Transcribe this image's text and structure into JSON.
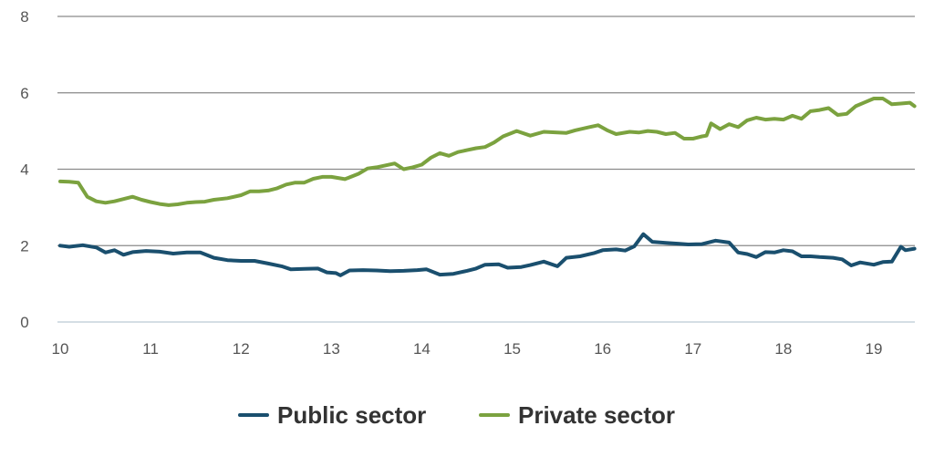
{
  "chart_data": {
    "type": "line",
    "title": "",
    "xlabel": "",
    "ylabel": "",
    "xlim": [
      10,
      19.45
    ],
    "ylim": [
      0,
      8
    ],
    "x_ticks": [
      10,
      11,
      12,
      13,
      14,
      15,
      16,
      17,
      18,
      19
    ],
    "x_tick_labels": [
      "10",
      "11",
      "12",
      "13",
      "14",
      "15",
      "16",
      "17",
      "18",
      "19"
    ],
    "y_ticks": [
      0,
      2,
      4,
      6,
      8
    ],
    "y_tick_labels": [
      "0",
      "2",
      "4",
      "6",
      "8"
    ],
    "grid": true,
    "legend_position": "bottom-center",
    "series": [
      {
        "name": "Public sector",
        "color": "#1a4f6e",
        "points": [
          [
            10.0,
            2.0
          ],
          [
            10.1,
            1.97
          ],
          [
            10.25,
            2.01
          ],
          [
            10.4,
            1.95
          ],
          [
            10.5,
            1.82
          ],
          [
            10.6,
            1.88
          ],
          [
            10.7,
            1.76
          ],
          [
            10.8,
            1.83
          ],
          [
            10.95,
            1.86
          ],
          [
            11.1,
            1.84
          ],
          [
            11.25,
            1.79
          ],
          [
            11.4,
            1.82
          ],
          [
            11.55,
            1.82
          ],
          [
            11.7,
            1.68
          ],
          [
            11.85,
            1.62
          ],
          [
            12.0,
            1.6
          ],
          [
            12.15,
            1.6
          ],
          [
            12.3,
            1.53
          ],
          [
            12.45,
            1.46
          ],
          [
            12.55,
            1.38
          ],
          [
            12.7,
            1.39
          ],
          [
            12.85,
            1.4
          ],
          [
            12.95,
            1.3
          ],
          [
            13.05,
            1.28
          ],
          [
            13.1,
            1.22
          ],
          [
            13.2,
            1.35
          ],
          [
            13.35,
            1.36
          ],
          [
            13.5,
            1.35
          ],
          [
            13.65,
            1.33
          ],
          [
            13.8,
            1.34
          ],
          [
            13.95,
            1.36
          ],
          [
            14.05,
            1.38
          ],
          [
            14.2,
            1.24
          ],
          [
            14.35,
            1.26
          ],
          [
            14.5,
            1.34
          ],
          [
            14.6,
            1.4
          ],
          [
            14.7,
            1.5
          ],
          [
            14.85,
            1.51
          ],
          [
            14.95,
            1.42
          ],
          [
            15.1,
            1.44
          ],
          [
            15.2,
            1.49
          ],
          [
            15.35,
            1.58
          ],
          [
            15.5,
            1.46
          ],
          [
            15.6,
            1.68
          ],
          [
            15.75,
            1.72
          ],
          [
            15.9,
            1.8
          ],
          [
            16.0,
            1.88
          ],
          [
            16.15,
            1.9
          ],
          [
            16.25,
            1.87
          ],
          [
            16.35,
            1.98
          ],
          [
            16.45,
            2.3
          ],
          [
            16.55,
            2.1
          ],
          [
            16.7,
            2.07
          ],
          [
            16.85,
            2.05
          ],
          [
            16.95,
            2.03
          ],
          [
            17.1,
            2.04
          ],
          [
            17.25,
            2.13
          ],
          [
            17.4,
            2.08
          ],
          [
            17.5,
            1.82
          ],
          [
            17.6,
            1.78
          ],
          [
            17.7,
            1.7
          ],
          [
            17.8,
            1.83
          ],
          [
            17.9,
            1.82
          ],
          [
            18.0,
            1.88
          ],
          [
            18.1,
            1.85
          ],
          [
            18.2,
            1.72
          ],
          [
            18.3,
            1.72
          ],
          [
            18.4,
            1.7
          ],
          [
            18.55,
            1.68
          ],
          [
            18.65,
            1.64
          ],
          [
            18.75,
            1.48
          ],
          [
            18.85,
            1.56
          ],
          [
            19.0,
            1.5
          ],
          [
            19.1,
            1.57
          ],
          [
            19.2,
            1.58
          ],
          [
            19.3,
            1.97
          ],
          [
            19.35,
            1.88
          ],
          [
            19.45,
            1.92
          ]
        ]
      },
      {
        "name": "Private sector",
        "color": "#7ba23f",
        "points": [
          [
            10.0,
            3.68
          ],
          [
            10.1,
            3.67
          ],
          [
            10.2,
            3.65
          ],
          [
            10.3,
            3.28
          ],
          [
            10.4,
            3.16
          ],
          [
            10.5,
            3.12
          ],
          [
            10.6,
            3.16
          ],
          [
            10.7,
            3.22
          ],
          [
            10.8,
            3.28
          ],
          [
            10.9,
            3.2
          ],
          [
            11.0,
            3.14
          ],
          [
            11.1,
            3.09
          ],
          [
            11.2,
            3.06
          ],
          [
            11.3,
            3.08
          ],
          [
            11.4,
            3.12
          ],
          [
            11.5,
            3.14
          ],
          [
            11.6,
            3.15
          ],
          [
            11.7,
            3.2
          ],
          [
            11.85,
            3.24
          ],
          [
            12.0,
            3.32
          ],
          [
            12.1,
            3.42
          ],
          [
            12.2,
            3.42
          ],
          [
            12.3,
            3.44
          ],
          [
            12.4,
            3.5
          ],
          [
            12.5,
            3.6
          ],
          [
            12.6,
            3.65
          ],
          [
            12.7,
            3.65
          ],
          [
            12.8,
            3.75
          ],
          [
            12.9,
            3.8
          ],
          [
            13.0,
            3.8
          ],
          [
            13.15,
            3.74
          ],
          [
            13.3,
            3.88
          ],
          [
            13.4,
            4.02
          ],
          [
            13.5,
            4.05
          ],
          [
            13.6,
            4.1
          ],
          [
            13.7,
            4.15
          ],
          [
            13.8,
            4.0
          ],
          [
            13.9,
            4.05
          ],
          [
            14.0,
            4.12
          ],
          [
            14.1,
            4.3
          ],
          [
            14.2,
            4.42
          ],
          [
            14.3,
            4.35
          ],
          [
            14.4,
            4.45
          ],
          [
            14.5,
            4.5
          ],
          [
            14.6,
            4.55
          ],
          [
            14.7,
            4.58
          ],
          [
            14.8,
            4.7
          ],
          [
            14.9,
            4.86
          ],
          [
            15.05,
            5.0
          ],
          [
            15.2,
            4.88
          ],
          [
            15.35,
            4.98
          ],
          [
            15.5,
            4.96
          ],
          [
            15.6,
            4.95
          ],
          [
            15.7,
            5.02
          ],
          [
            15.85,
            5.1
          ],
          [
            15.95,
            5.15
          ],
          [
            16.05,
            5.02
          ],
          [
            16.15,
            4.92
          ],
          [
            16.3,
            4.98
          ],
          [
            16.4,
            4.96
          ],
          [
            16.5,
            5.0
          ],
          [
            16.6,
            4.98
          ],
          [
            16.7,
            4.92
          ],
          [
            16.8,
            4.95
          ],
          [
            16.9,
            4.8
          ],
          [
            17.0,
            4.8
          ],
          [
            17.1,
            4.86
          ],
          [
            17.15,
            4.88
          ],
          [
            17.2,
            5.2
          ],
          [
            17.3,
            5.05
          ],
          [
            17.4,
            5.18
          ],
          [
            17.5,
            5.1
          ],
          [
            17.6,
            5.28
          ],
          [
            17.7,
            5.35
          ],
          [
            17.8,
            5.3
          ],
          [
            17.9,
            5.32
          ],
          [
            18.0,
            5.3
          ],
          [
            18.1,
            5.4
          ],
          [
            18.2,
            5.32
          ],
          [
            18.3,
            5.52
          ],
          [
            18.4,
            5.55
          ],
          [
            18.5,
            5.6
          ],
          [
            18.6,
            5.42
          ],
          [
            18.7,
            5.45
          ],
          [
            18.8,
            5.65
          ],
          [
            18.9,
            5.75
          ],
          [
            19.0,
            5.85
          ],
          [
            19.1,
            5.85
          ],
          [
            19.2,
            5.7
          ],
          [
            19.3,
            5.72
          ],
          [
            19.4,
            5.74
          ],
          [
            19.45,
            5.65
          ]
        ]
      }
    ]
  }
}
